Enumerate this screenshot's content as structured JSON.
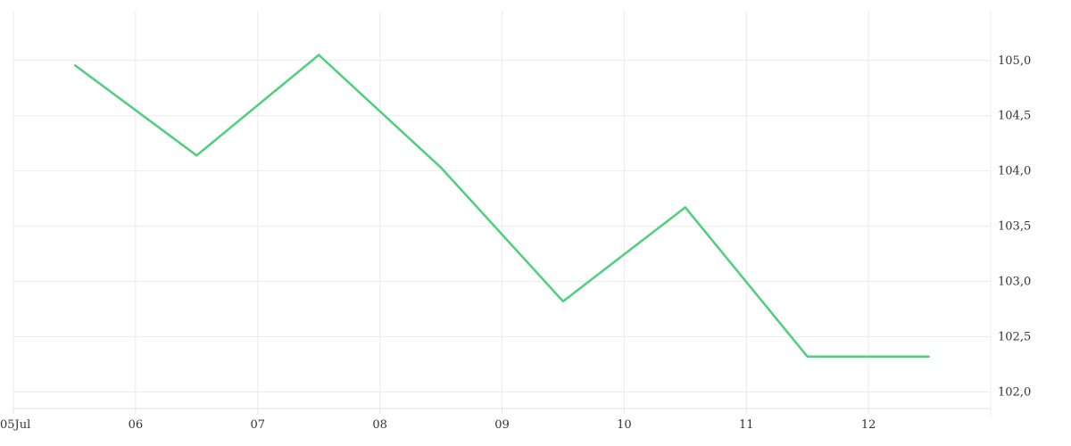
{
  "chart_data": {
    "type": "line",
    "title": "",
    "xlabel": "",
    "ylabel": "",
    "x_ticks": [
      {
        "x": 5,
        "label": "05Jul"
      },
      {
        "x": 6,
        "label": "06"
      },
      {
        "x": 7,
        "label": "07"
      },
      {
        "x": 8,
        "label": "08"
      },
      {
        "x": 9,
        "label": "09"
      },
      {
        "x": 10,
        "label": "10"
      },
      {
        "x": 11,
        "label": "11"
      },
      {
        "x": 12,
        "label": "12"
      }
    ],
    "y_ticks": [
      {
        "y": 102.0,
        "label": "102,0"
      },
      {
        "y": 102.5,
        "label": "102,5"
      },
      {
        "y": 103.0,
        "label": "103,0"
      },
      {
        "y": 103.5,
        "label": "103,5"
      },
      {
        "y": 104.0,
        "label": "104,0"
      },
      {
        "y": 104.5,
        "label": "104,5"
      },
      {
        "y": 105.0,
        "label": "105,0"
      }
    ],
    "xlim": [
      5,
      13
    ],
    "ylim": [
      101.85,
      105.45
    ],
    "y_axis_position": "right",
    "grid": true,
    "legend": false,
    "series": [
      {
        "color": "#4cd07d",
        "x": [
          5.5,
          6.5,
          7.5,
          8.5,
          9.5,
          10.5,
          11.5,
          12.5
        ],
        "y": [
          104.96,
          104.14,
          105.05,
          104.03,
          102.82,
          103.67,
          102.32,
          102.32
        ]
      }
    ]
  }
}
